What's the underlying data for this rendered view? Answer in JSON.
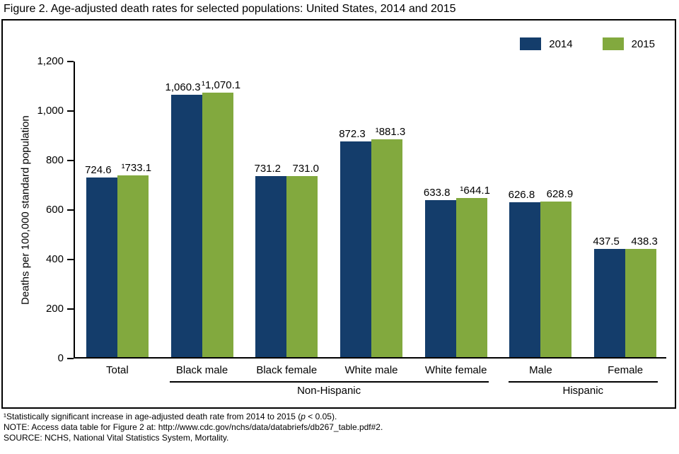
{
  "page": {
    "title": "Figure 2. Age-adjusted death rates for selected populations: United States, 2014 and 2015"
  },
  "footnotes": {
    "line1_pre": "¹Statistically significant increase in age-adjusted death rate from 2014 to 2015 (",
    "line1_p": "p",
    "line1_post": " < 0.05).",
    "line2": "NOTE: Access data table for Figure 2 at: http://www.cdc.gov/nchs/data/databriefs/db267_table.pdf#2.",
    "line3": "SOURCE: NCHS, National Vital Statistics System, Mortality."
  },
  "chart_data": {
    "type": "bar",
    "title": "Figure 2. Age-adjusted death rates for selected populations: United States, 2014 and 2015",
    "xlabel": "",
    "ylabel": "Deaths per 100,000 standard population",
    "ylim": [
      0,
      1200
    ],
    "ytick_interval": 200,
    "ytick_labels": [
      "0",
      "200",
      "400",
      "600",
      "800",
      "1,000",
      "1,200"
    ],
    "grid": false,
    "legend_position": "top-right",
    "categories": [
      "Total",
      "Black male",
      "Black female",
      "White male",
      "White female",
      "Male",
      "Female"
    ],
    "series": [
      {
        "name": "2014",
        "color": "#143d6b",
        "values": [
          724.6,
          1060.3,
          731.2,
          872.3,
          633.8,
          626.8,
          437.5
        ],
        "labels": [
          "724.6",
          "1,060.3",
          "731.2",
          "872.3",
          "633.8",
          "626.8",
          "437.5"
        ]
      },
      {
        "name": "2015",
        "color": "#82a93e",
        "values": [
          733.1,
          1070.1,
          731.0,
          881.3,
          644.1,
          628.9,
          438.3
        ],
        "labels": [
          "¹733.1",
          "¹1,070.1",
          "731.0",
          "¹881.3",
          "¹644.1",
          "628.9",
          "438.3"
        ]
      }
    ],
    "group_annotations": [
      {
        "label": "Non-Hispanic",
        "start": 1,
        "end": 4
      },
      {
        "label": "Hispanic",
        "start": 5,
        "end": 6
      }
    ]
  }
}
